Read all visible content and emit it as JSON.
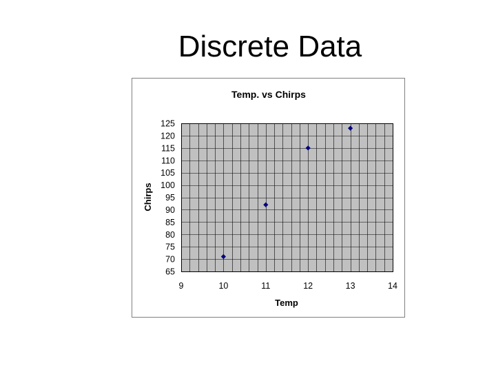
{
  "slide": {
    "title": "Discrete Data"
  },
  "chart_data": {
    "type": "scatter",
    "title": "Temp. vs Chirps",
    "xlabel": "Temp",
    "ylabel": "Chirps",
    "xlim": [
      9,
      14
    ],
    "ylim": [
      65,
      125
    ],
    "xticks": [
      9,
      10,
      11,
      12,
      13,
      14
    ],
    "yticks": [
      65,
      70,
      75,
      80,
      85,
      90,
      95,
      100,
      105,
      110,
      115,
      120,
      125
    ],
    "x_minor_step": 0.2,
    "y_minor_step": 5,
    "grid": true,
    "legend": "none",
    "marker": "diamond",
    "colors": {
      "plot_background": "#c0c0c0",
      "grid": "#000000",
      "marker": "#000080",
      "frame": "#7f7f7f"
    },
    "series": [
      {
        "x": [
          10,
          11,
          12,
          13
        ],
        "y": [
          71,
          92,
          115,
          123
        ]
      }
    ]
  }
}
